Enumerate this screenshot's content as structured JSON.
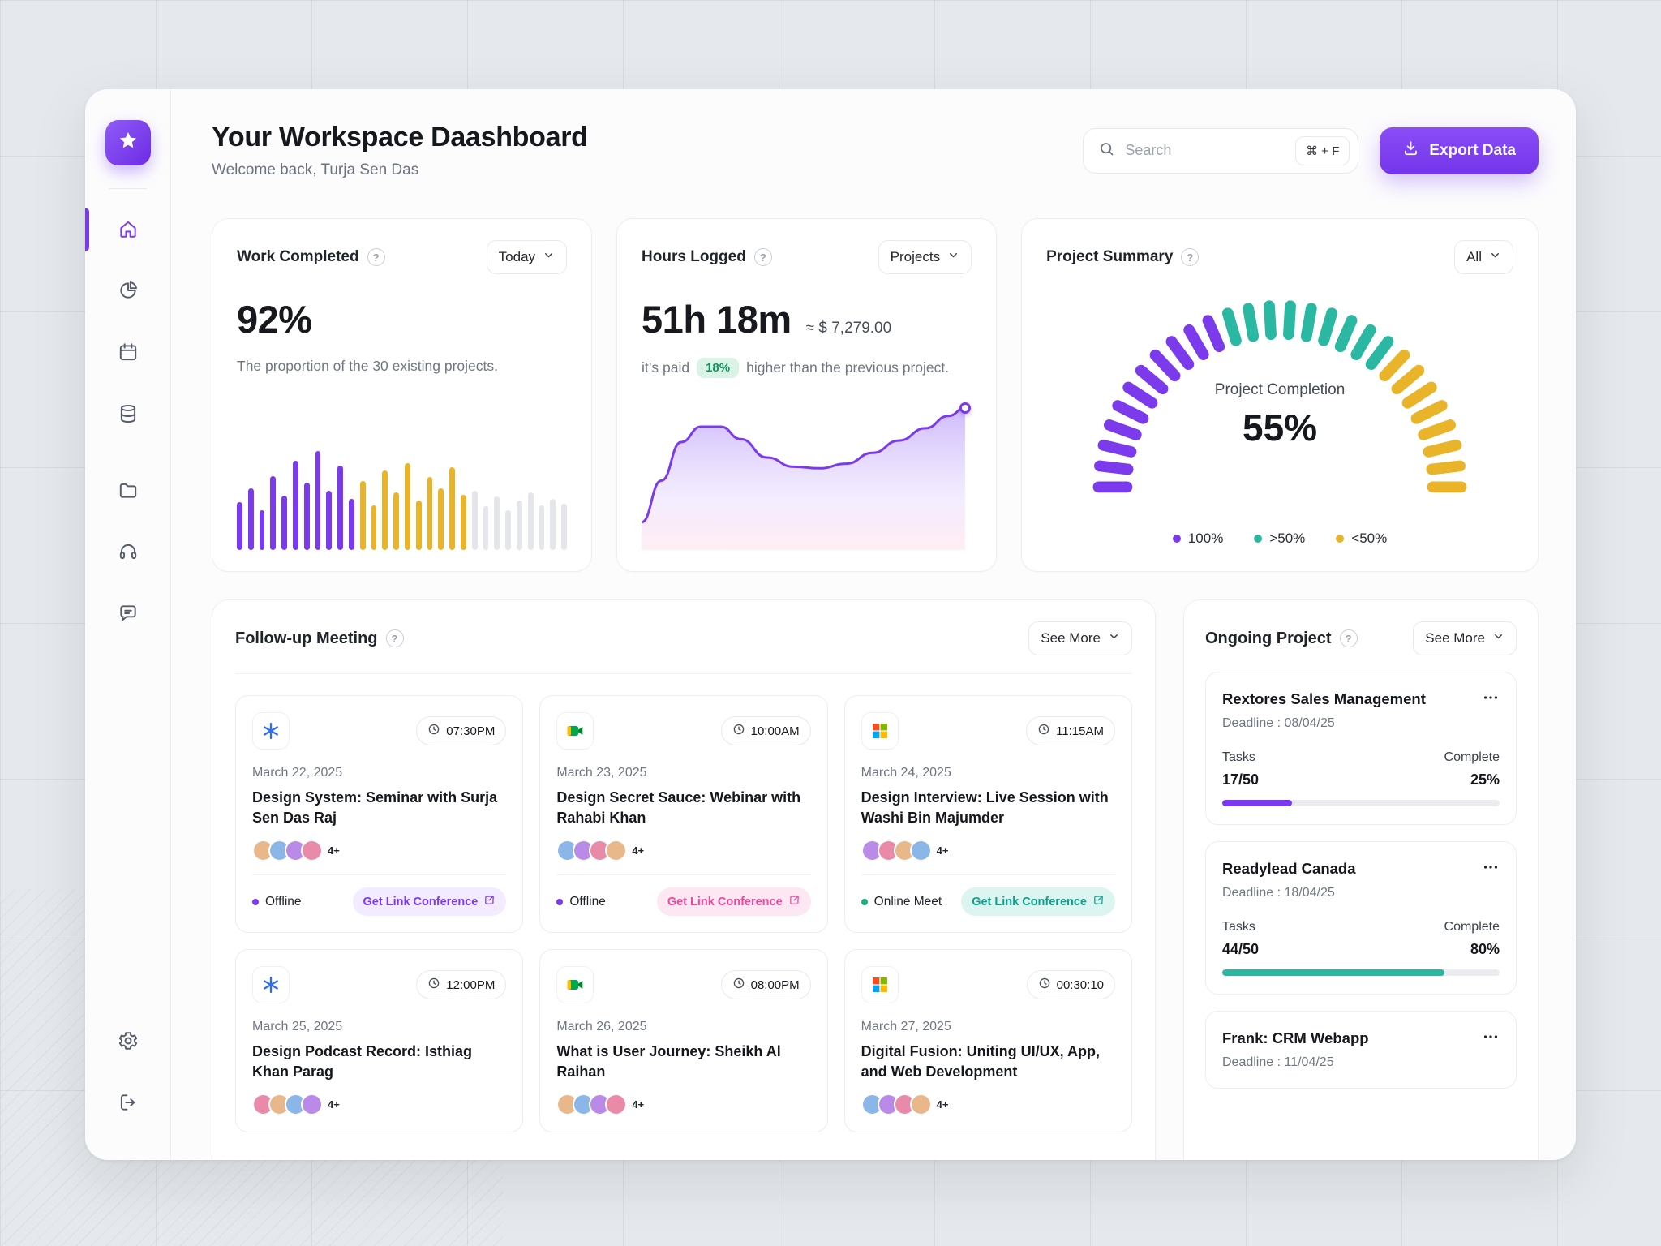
{
  "theme": {
    "accent": "#7C3AED",
    "teal": "#2BB8A3",
    "yellow": "#E9B32A",
    "gray_bar": "#E4E6EA",
    "green": "#18B07B",
    "pink": "#EC4899",
    "blue": "#2E6BF6",
    "avatar_colors": [
      "#E8B88A",
      "#8AB6E8",
      "#B98AE8",
      "#E88AA8"
    ],
    "link_themes": {
      "purple": {
        "bg": "#F3EBFF",
        "fg": "#7C3AED"
      },
      "pink": {
        "bg": "#FDE7F2",
        "fg": "#EC4899"
      },
      "teal": {
        "bg": "#DDF5F0",
        "fg": "#0CA18C"
      }
    }
  },
  "sidebar": {
    "items": [
      {
        "id": "home",
        "icon": "home",
        "active": true
      },
      {
        "id": "analytics",
        "icon": "pie",
        "active": false
      },
      {
        "id": "calendar",
        "icon": "calendar",
        "active": false
      },
      {
        "id": "database",
        "icon": "database",
        "active": false
      },
      {
        "id": "projects",
        "icon": "folder",
        "active": false,
        "gap": true
      },
      {
        "id": "support",
        "icon": "headset",
        "active": false
      },
      {
        "id": "messages",
        "icon": "chat",
        "active": false
      }
    ],
    "bottom_items": [
      {
        "id": "settings",
        "icon": "gear"
      },
      {
        "id": "logout",
        "icon": "logout"
      }
    ]
  },
  "header": {
    "title": "Your Workspace Daashboard",
    "subtitle": "Welcome back, Turja Sen Das",
    "search": {
      "placeholder": "Search",
      "shortcut": "⌘ + F"
    },
    "export_label": "Export Data"
  },
  "stats": {
    "work": {
      "title": "Work Completed",
      "filter": "Today",
      "value": "92%",
      "description": "The proportion of the 30 existing projects."
    },
    "hours": {
      "title": "Hours Logged",
      "filter": "Projects",
      "value": "51h 18m",
      "approx": "≈ $ 7,279.00",
      "note_prefix": "it’s paid",
      "badge": "18%",
      "note_suffix": "higher than the previous project."
    },
    "summary": {
      "title": "Project Summary",
      "filter": "All",
      "center_label": "Project Completion",
      "center_value": "55%",
      "legend": [
        {
          "label": "100%",
          "color": "#7C3AED"
        },
        {
          "label": ">50%",
          "color": "#2BB8A3"
        },
        {
          "label": "<50%",
          "color": "#E9B32A"
        }
      ]
    }
  },
  "charts": {
    "work_bars": {
      "type": "bar",
      "values": [
        48,
        62,
        40,
        75,
        55,
        90,
        68,
        100,
        60,
        85,
        52,
        70,
        45,
        80,
        58,
        88,
        50,
        74,
        62,
        84,
        56,
        60,
        44,
        54,
        40,
        50,
        58,
        45,
        52,
        47
      ],
      "segments": [
        {
          "count": 11,
          "color": "#7C3AED"
        },
        {
          "count": 10,
          "color": "#E9B32A"
        },
        {
          "count": 9,
          "color": "#E4E6EA"
        }
      ]
    },
    "hours_line": {
      "type": "area",
      "stroke": "#7C3AED",
      "points": [
        [
          0,
          82
        ],
        [
          6,
          55
        ],
        [
          12,
          30
        ],
        [
          18,
          20
        ],
        [
          24,
          20
        ],
        [
          30,
          28
        ],
        [
          38,
          40
        ],
        [
          46,
          46
        ],
        [
          54,
          47
        ],
        [
          62,
          44
        ],
        [
          70,
          37
        ],
        [
          78,
          29
        ],
        [
          86,
          21
        ],
        [
          93,
          13
        ],
        [
          98,
          8
        ]
      ]
    },
    "gauge": {
      "type": "gauge",
      "value": 55,
      "segments": [
        {
          "count": 11,
          "color": "#7C3AED"
        },
        {
          "count": 9,
          "color": "#2BB8A3"
        },
        {
          "count": 8,
          "color": "#E9B32A"
        }
      ]
    }
  },
  "meetings": {
    "title": "Follow-up Meeting",
    "see_more": "See More",
    "cards": [
      {
        "app_icon": "snowflake",
        "time": "07:30PM",
        "date": "March 22, 2025",
        "title": "Design System: Seminar with Surja Sen Das Raj",
        "extra": "4+",
        "status": "Offline",
        "status_color": "#7C3AED",
        "link_label": "Get Link Conference",
        "link_theme": "purple"
      },
      {
        "app_icon": "google-meet",
        "time": "10:00AM",
        "date": "March 23, 2025",
        "title": "Design Secret Sauce: Webinar with Rahabi Khan",
        "extra": "4+",
        "status": "Offline",
        "status_color": "#7C3AED",
        "link_label": "Get Link Conference",
        "link_theme": "pink"
      },
      {
        "app_icon": "microsoft",
        "time": "11:15AM",
        "date": "March 24, 2025",
        "title": "Design Interview: Live Session with Washi Bin Majumder",
        "extra": "4+",
        "status": "Online Meet",
        "status_color": "#18B07B",
        "link_label": "Get Link Conference",
        "link_theme": "teal"
      },
      {
        "app_icon": "snowflake",
        "time": "12:00PM",
        "date": "March 25, 2025",
        "title": "Design Podcast Record: Isthiag Khan Parag",
        "extra": "4+"
      },
      {
        "app_icon": "google-meet",
        "time": "08:00PM",
        "date": "March 26, 2025",
        "title": "What is User Journey: Sheikh Al Raihan",
        "extra": "4+"
      },
      {
        "app_icon": "microsoft",
        "time": "00:30:10",
        "date": "March 27, 2025",
        "title": "Digital Fusion: Uniting UI/UX, App, and Web Development",
        "extra": "4+"
      }
    ]
  },
  "ongoing": {
    "title": "Ongoing Project",
    "see_more": "See More",
    "projects": [
      {
        "name": "Rextores Sales Management",
        "deadline": "Deadline : 08/04/25",
        "tasks_label": "Tasks",
        "complete_label": "Complete",
        "tasks": "17/50",
        "percent": "25%",
        "progress": 25,
        "color": "#7C3AED"
      },
      {
        "name": "Readylead Canada",
        "deadline": "Deadline : 18/04/25",
        "tasks_label": "Tasks",
        "complete_label": "Complete",
        "tasks": "44/50",
        "percent": "80%",
        "progress": 80,
        "color": "#2BB8A3"
      },
      {
        "name": "Frank: CRM Webapp",
        "deadline": "Deadline : 11/04/25"
      }
    ]
  }
}
